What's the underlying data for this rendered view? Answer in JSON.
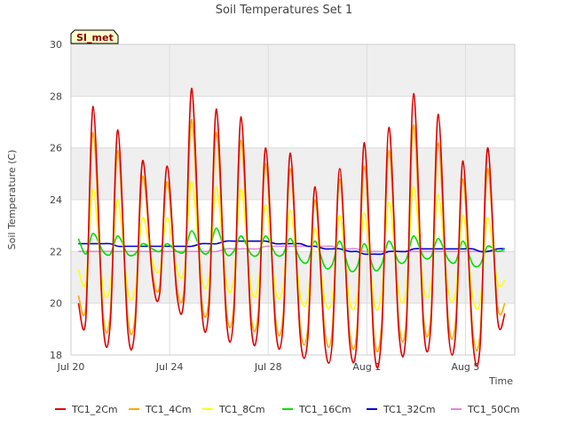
{
  "chart_data": {
    "type": "line",
    "title": "Soil Temperatures Set 1",
    "xlabel": "Time",
    "ylabel": "Soil Temperature (C)",
    "badge": "SI_met",
    "ylim": [
      18,
      30
    ],
    "yticks": [
      18,
      20,
      22,
      24,
      26,
      28,
      30
    ],
    "xlim": [
      "2022-07-20",
      "2022-08-07"
    ],
    "xticks": [
      {
        "label": "Jul 20",
        "day": 0
      },
      {
        "label": "Jul 24",
        "day": 4
      },
      {
        "label": "Jul 28",
        "day": 8
      },
      {
        "label": "Aug 1",
        "day": 12
      },
      {
        "label": "Aug 5",
        "day": 16
      }
    ],
    "x_days": [
      0.3,
      0.6,
      0.9,
      1.3,
      1.6,
      1.9,
      2.3,
      2.6,
      2.9,
      3.3,
      3.6,
      3.9,
      4.3,
      4.6,
      4.9,
      5.3,
      5.6,
      5.9,
      6.3,
      6.6,
      6.9,
      7.3,
      7.6,
      7.9,
      8.3,
      8.6,
      8.9,
      9.3,
      9.6,
      9.9,
      10.3,
      10.6,
      10.9,
      11.3,
      11.6,
      11.9,
      12.3,
      12.6,
      12.9,
      13.3,
      13.6,
      13.9,
      14.3,
      14.6,
      14.9,
      15.3,
      15.6,
      15.9,
      16.3,
      16.6,
      16.9,
      17.3,
      17.6
    ],
    "grid": true,
    "legend_position": "bottom",
    "colors": {
      "band": "#efefef",
      "plot_bg": "#ffffff",
      "grid": "#dddddd",
      "badge_bg": "#ffffcc"
    },
    "series": [
      {
        "name": "TC1_2Cm",
        "color": "#dd0000",
        "values": [
          20.0,
          19.4,
          27.6,
          19.2,
          19.3,
          26.7,
          19.0,
          19.1,
          25.5,
          21.0,
          20.4,
          25.3,
          20.3,
          20.4,
          28.3,
          19.8,
          19.9,
          27.5,
          19.4,
          19.5,
          27.2,
          19.2,
          19.3,
          26.0,
          19.0,
          19.1,
          25.8,
          18.7,
          18.6,
          24.5,
          18.4,
          18.5,
          25.2,
          18.5,
          18.6,
          26.2,
          18.2,
          18.8,
          26.8,
          18.9,
          19.0,
          28.1,
          19.1,
          19.2,
          27.3,
          19.0,
          18.8,
          25.5,
          18.5,
          18.4,
          26.0,
          19.4,
          19.6
        ]
      },
      {
        "name": "TC1_4Cm",
        "color": "#ffa500",
        "values": [
          20.3,
          19.9,
          26.6,
          19.6,
          19.7,
          25.9,
          19.5,
          19.5,
          24.9,
          21.2,
          20.7,
          24.7,
          20.6,
          20.7,
          27.1,
          20.2,
          20.3,
          26.6,
          19.8,
          19.9,
          26.3,
          19.6,
          19.7,
          25.4,
          19.4,
          19.5,
          25.2,
          19.1,
          19.0,
          24.0,
          18.9,
          19.0,
          24.8,
          18.9,
          19.0,
          25.3,
          18.7,
          19.2,
          25.9,
          19.3,
          19.4,
          26.9,
          19.5,
          19.6,
          26.2,
          19.4,
          19.3,
          24.8,
          18.9,
          18.9,
          25.2,
          19.9,
          20.0
        ]
      },
      {
        "name": "TC1_8Cm",
        "color": "#ffff00",
        "values": [
          21.3,
          20.8,
          24.4,
          20.6,
          20.7,
          24.0,
          20.5,
          20.5,
          23.3,
          21.6,
          21.3,
          23.3,
          21.3,
          21.3,
          24.7,
          21.0,
          21.0,
          24.5,
          20.8,
          20.9,
          24.4,
          20.6,
          20.7,
          23.8,
          20.5,
          20.6,
          23.6,
          20.3,
          20.2,
          22.9,
          20.1,
          20.2,
          23.4,
          20.1,
          20.2,
          23.5,
          20.0,
          20.4,
          23.9,
          20.4,
          20.5,
          24.5,
          20.6,
          20.7,
          24.2,
          20.5,
          20.4,
          23.4,
          20.2,
          20.1,
          23.3,
          20.8,
          20.9
        ]
      },
      {
        "name": "TC1_16Cm",
        "color": "#00dd00",
        "values": [
          22.5,
          21.9,
          22.7,
          22.0,
          21.9,
          22.6,
          21.9,
          21.9,
          22.3,
          22.1,
          22.0,
          22.3,
          22.0,
          22.0,
          22.8,
          22.0,
          22.0,
          22.9,
          21.9,
          22.0,
          22.6,
          21.9,
          21.9,
          22.6,
          21.9,
          21.9,
          22.5,
          21.7,
          21.6,
          22.4,
          21.4,
          21.5,
          22.4,
          21.3,
          21.4,
          22.3,
          21.3,
          21.5,
          22.4,
          21.6,
          21.7,
          22.6,
          21.8,
          21.8,
          22.5,
          21.7,
          21.6,
          22.4,
          21.5,
          21.5,
          22.2,
          22.0,
          22.1
        ]
      },
      {
        "name": "TC1_32Cm",
        "color": "#0000cc",
        "values": [
          22.3,
          22.3,
          22.3,
          22.3,
          22.3,
          22.2,
          22.2,
          22.2,
          22.2,
          22.2,
          22.2,
          22.2,
          22.2,
          22.2,
          22.2,
          22.3,
          22.3,
          22.3,
          22.4,
          22.4,
          22.4,
          22.4,
          22.4,
          22.4,
          22.3,
          22.3,
          22.3,
          22.3,
          22.2,
          22.2,
          22.1,
          22.1,
          22.1,
          22.0,
          22.0,
          21.9,
          21.9,
          21.9,
          22.0,
          22.0,
          22.0,
          22.1,
          22.1,
          22.1,
          22.1,
          22.1,
          22.1,
          22.1,
          22.1,
          22.0,
          22.0,
          22.1,
          22.1
        ]
      },
      {
        "name": "TC1_50Cm",
        "color": "#dd88dd",
        "values": [
          22.0,
          22.0,
          22.0,
          22.0,
          22.0,
          22.0,
          22.0,
          22.0,
          22.0,
          22.0,
          22.0,
          22.0,
          22.0,
          22.0,
          22.0,
          22.0,
          22.0,
          22.0,
          22.1,
          22.1,
          22.1,
          22.1,
          22.1,
          22.2,
          22.2,
          22.2,
          22.2,
          22.2,
          22.2,
          22.2,
          22.2,
          22.2,
          22.1,
          22.1,
          22.1,
          22.0,
          22.0,
          22.0,
          22.0,
          22.0,
          22.0,
          22.0,
          22.0,
          22.0,
          22.0,
          22.0,
          22.0,
          22.0,
          22.0,
          22.0,
          22.0,
          22.0,
          22.0
        ]
      }
    ]
  }
}
